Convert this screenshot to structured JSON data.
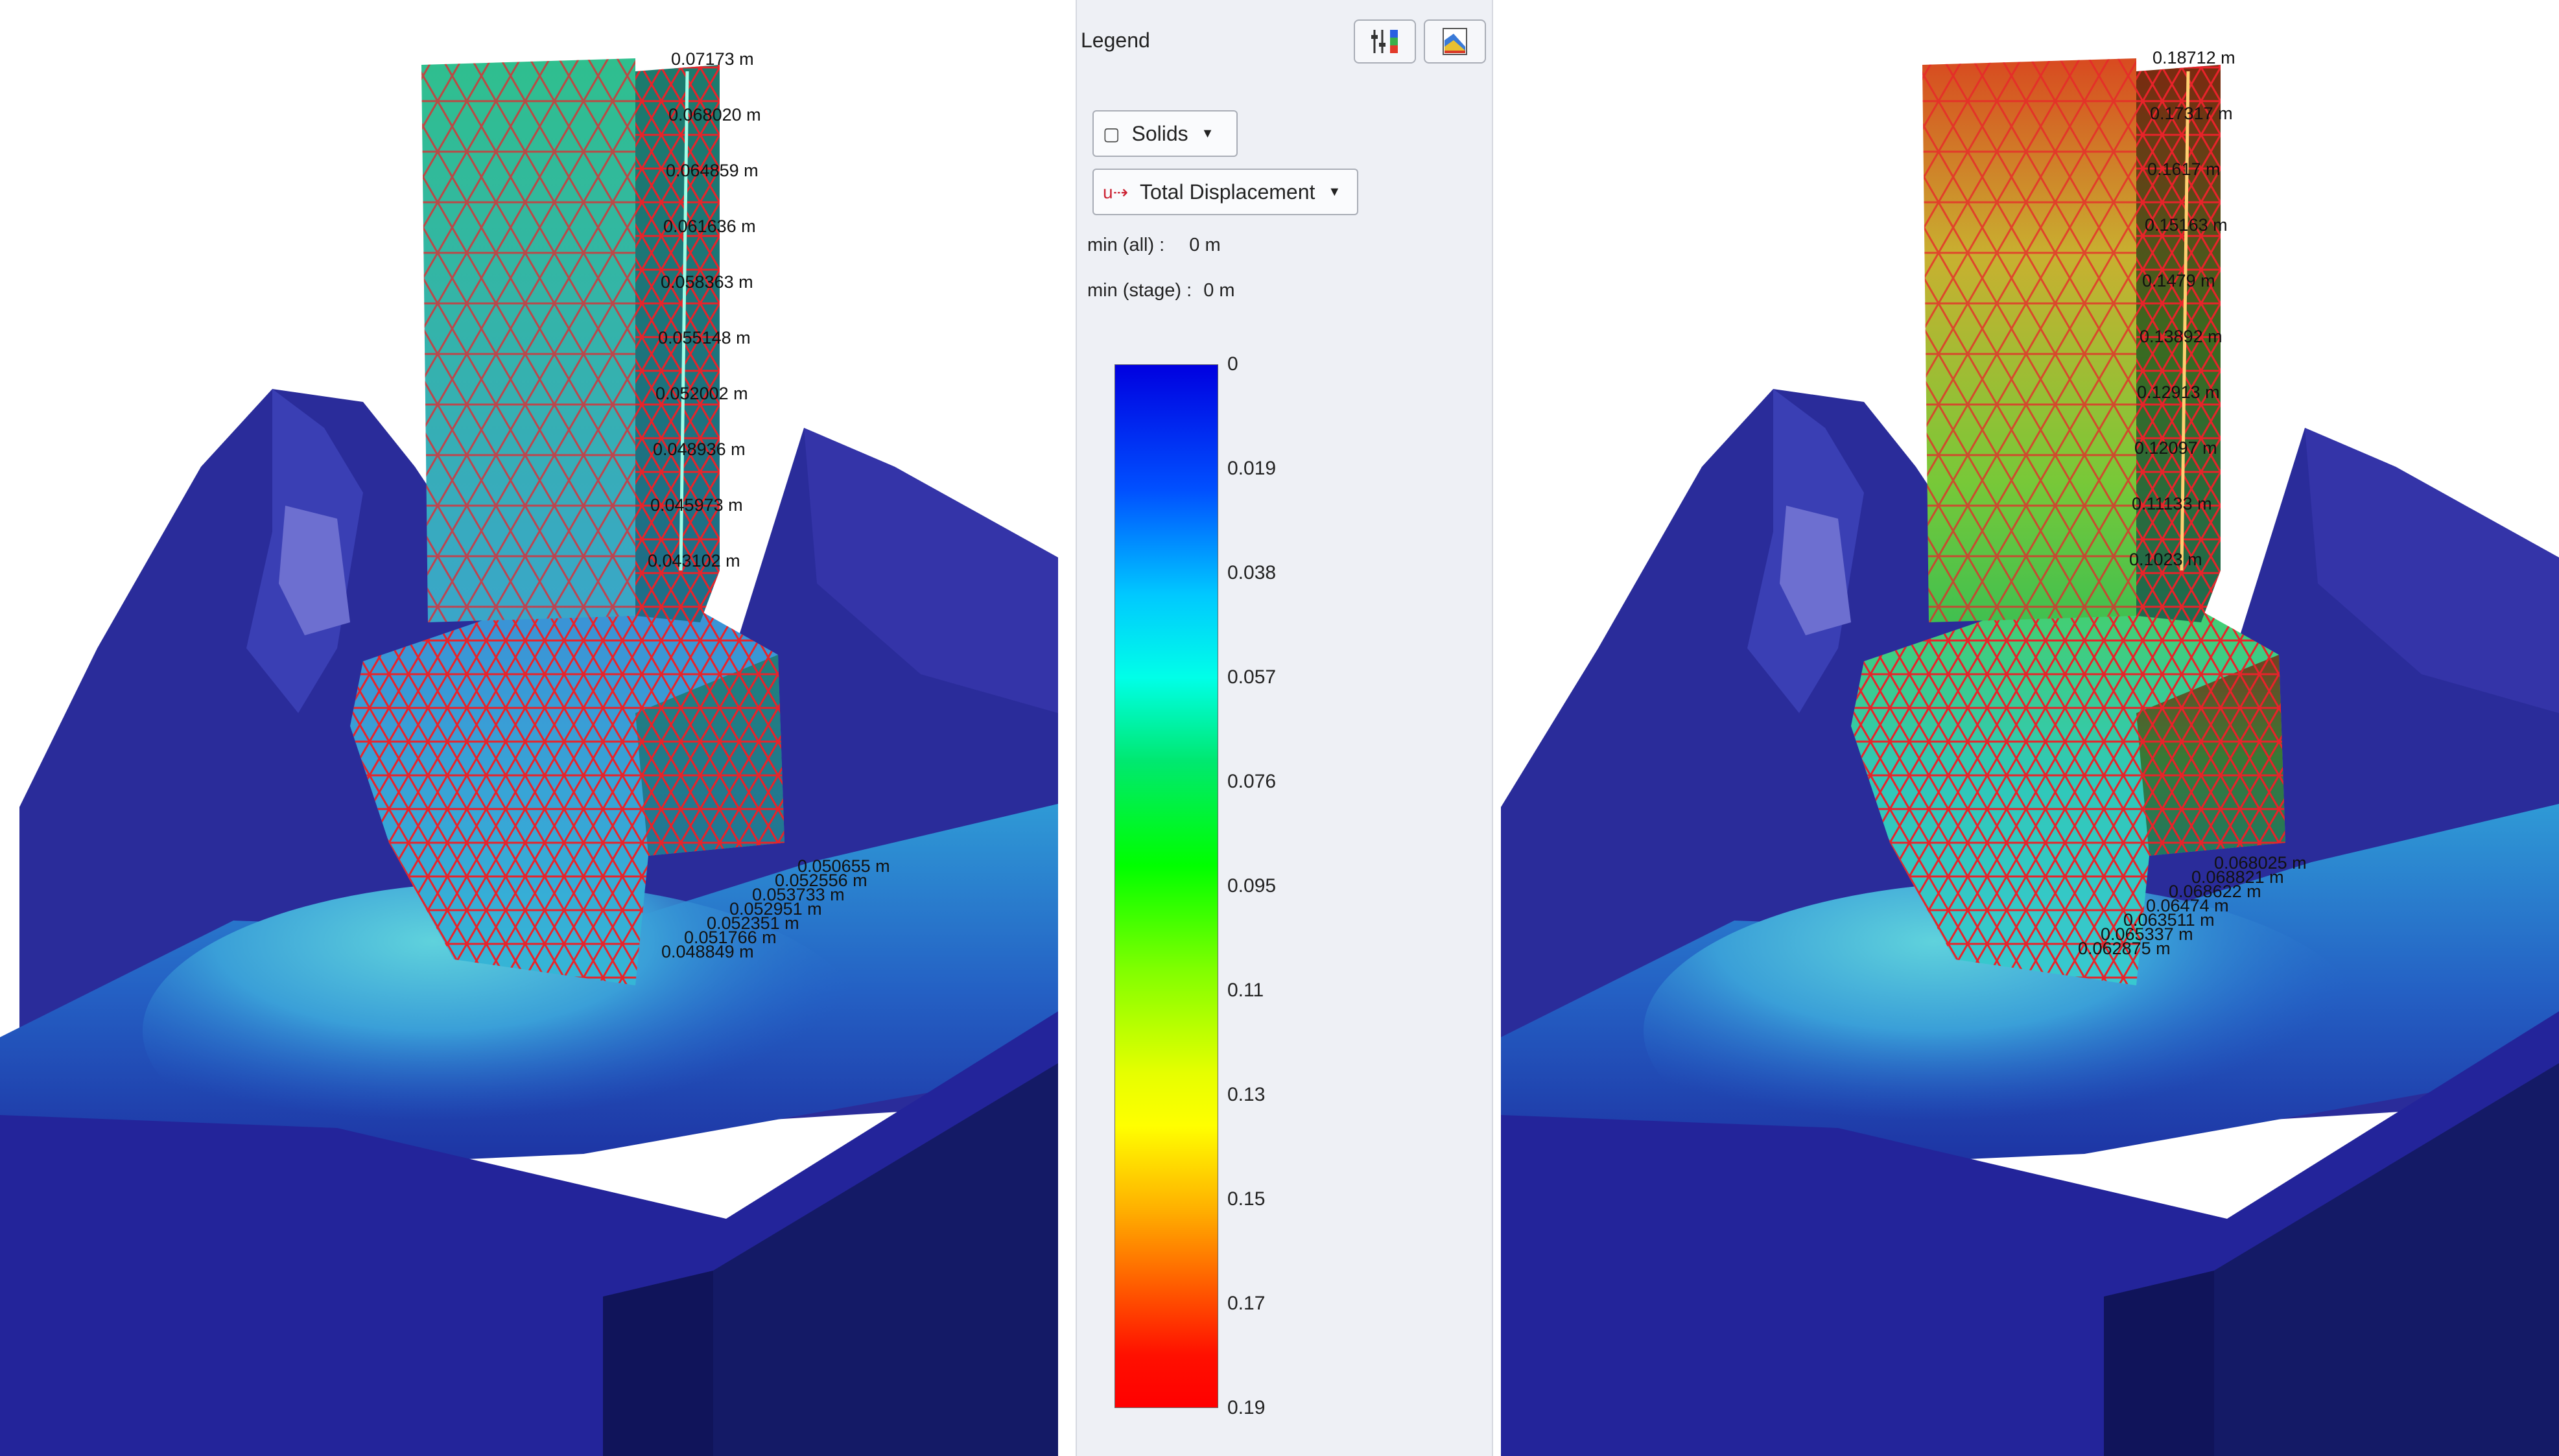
{
  "legend": {
    "title": "Legend",
    "toolbar": {
      "settings_icon": "slider-settings-icon",
      "chart_icon": "color-chart-icon"
    },
    "solids_dropdown": {
      "icon": "solid-box-icon",
      "label": "Solids"
    },
    "result_dropdown": {
      "icon": "displacement-uxyz-icon",
      "label": "Total Displacement"
    },
    "min_all": {
      "label": "min (all) :",
      "value": "0 m"
    },
    "min_stage": {
      "label": "min (stage) :",
      "value": "0 m"
    },
    "colorbar": {
      "ticks": [
        "0",
        "0.019",
        "0.038",
        "0.057",
        "0.076",
        "0.095",
        "0.11",
        "0.13",
        "0.15",
        "0.17",
        "0.19"
      ]
    }
  },
  "left_view": {
    "top_probes": [
      "0.07173 m",
      "0.068020 m",
      "0.064859 m",
      "0.061636 m",
      "0.058363 m",
      "0.055148 m",
      "0.052002 m",
      "0.048936 m",
      "0.045973 m",
      "0.043102 m"
    ],
    "base_probes": [
      "0.050655 m",
      "0.052556 m",
      "0.053733 m",
      "0.052951 m",
      "0.052351 m",
      "0.051766 m",
      "0.048849 m"
    ]
  },
  "right_view": {
    "top_probes": [
      "0.18712 m",
      "0.17317 m",
      "0.1617 m",
      "0.15163 m",
      "0.1479 m",
      "0.13892 m",
      "0.12913 m",
      "0.12097 m",
      "0.11133 m",
      "0.1023 m"
    ],
    "base_probes": [
      "0.068025 m",
      "0.068821 m",
      "0.068622 m",
      "0.06474 m",
      "0.063511 m",
      "0.065337 m",
      "0.062875 m"
    ]
  },
  "colors": {
    "mesh": "#e8232a",
    "terrain_deep": "#20207e",
    "terrain_mid": "#3434a8",
    "background": "#ffffff"
  }
}
